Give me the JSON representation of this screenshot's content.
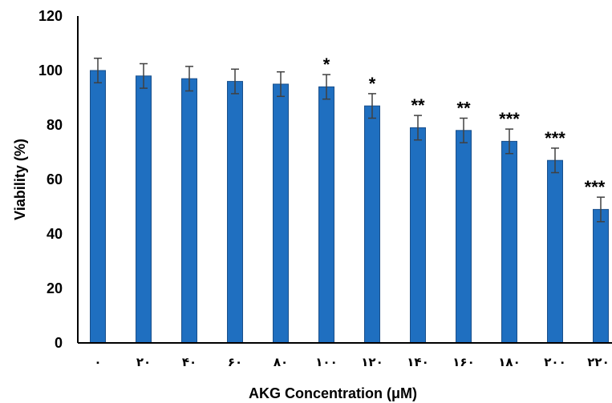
{
  "chart_data": {
    "type": "bar",
    "title": "",
    "xlabel": "AKG Concentration (μM)",
    "ylabel": "Viability (%)",
    "ylim": [
      0,
      120
    ],
    "yticks": [
      "0",
      "20",
      "40",
      "60",
      "80",
      "100",
      "120"
    ],
    "categories": [
      "٠",
      "٢٠",
      "۴٠",
      "۶٠",
      "٨٠",
      "١٠٠",
      "١٢٠",
      "١۴٠",
      "١۶٠",
      "١٨٠",
      "٢٠٠",
      "٢٢٠"
    ],
    "values": [
      100,
      98,
      97,
      96,
      95,
      94,
      87,
      79,
      78,
      74,
      67,
      49
    ],
    "errors": [
      4.5,
      4.5,
      4.5,
      4.5,
      4.5,
      4.5,
      4.5,
      4.5,
      4.5,
      4.5,
      4.5,
      4.5
    ],
    "significance": [
      "",
      "",
      "",
      "",
      "",
      "*",
      "*",
      "**",
      "**",
      "***",
      "***",
      "***"
    ],
    "bar_color": "#1f6fc0",
    "bar_edge_color": "#1a4f8a",
    "error_color": "#404040",
    "grid": false,
    "legend": "none"
  }
}
